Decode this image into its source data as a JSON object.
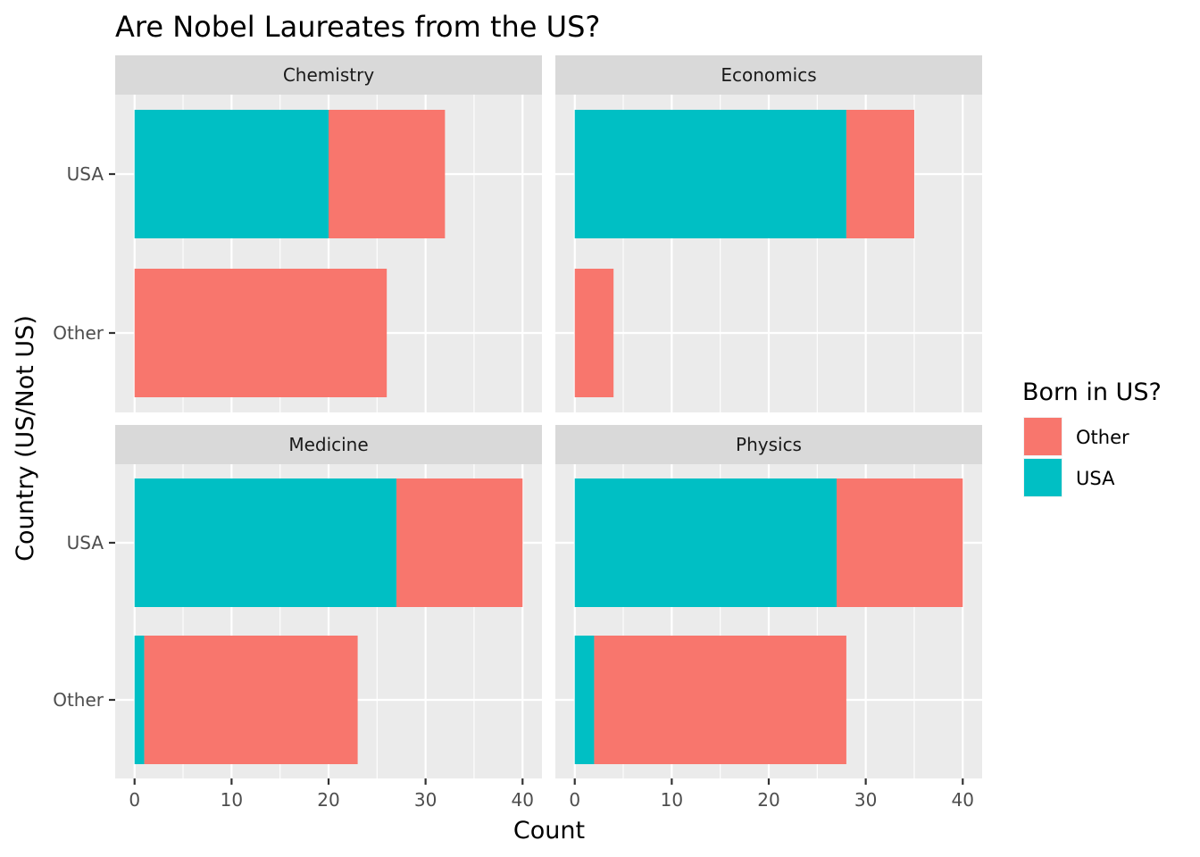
{
  "chart_data": {
    "type": "bar",
    "orientation": "horizontal",
    "stacked": true,
    "title": "Are Nobel Laureates from the US?",
    "xlabel": "Count",
    "ylabel": "Country (US/Not US)",
    "xlim": [
      -2,
      42
    ],
    "x_ticks": [
      "0",
      "10",
      "20",
      "30",
      "40"
    ],
    "categories": [
      "USA",
      "Other"
    ],
    "legend": {
      "title": "Born in US?",
      "placement": "right",
      "entries": [
        {
          "name": "Other",
          "color": "#F8766D"
        },
        {
          "name": "USA",
          "color": "#00BFC4"
        }
      ]
    },
    "facets": [
      {
        "name": "Chemistry",
        "series": [
          {
            "name": "USA",
            "values": [
              20,
              0
            ]
          },
          {
            "name": "Other",
            "values": [
              12,
              26
            ]
          }
        ]
      },
      {
        "name": "Economics",
        "series": [
          {
            "name": "USA",
            "values": [
              28,
              0
            ]
          },
          {
            "name": "Other",
            "values": [
              7,
              4
            ]
          }
        ]
      },
      {
        "name": "Medicine",
        "series": [
          {
            "name": "USA",
            "values": [
              27,
              1
            ]
          },
          {
            "name": "Other",
            "values": [
              13,
              22
            ]
          }
        ]
      },
      {
        "name": "Physics",
        "series": [
          {
            "name": "USA",
            "values": [
              27,
              2
            ]
          },
          {
            "name": "Other",
            "values": [
              13,
              26
            ]
          }
        ]
      }
    ],
    "grid": true
  }
}
